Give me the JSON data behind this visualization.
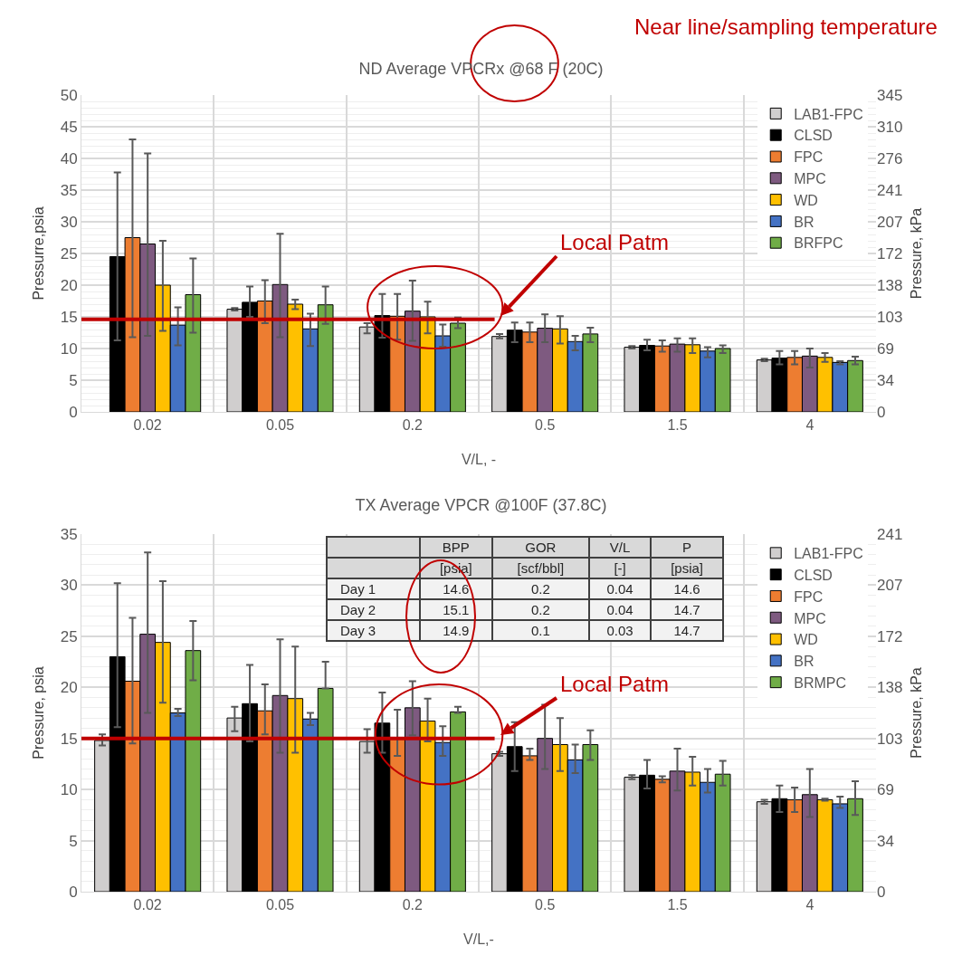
{
  "chart_data": [
    {
      "type": "bar",
      "title": "ND Average VPCRx @68 F (20C)",
      "xlabel": "V/L, -",
      "ylabel": "Pressurre,psia",
      "y2label": "Pressure, kPa",
      "annotations": [
        "Near line/sampling temperature"
      ],
      "categories": [
        "0.02",
        "0.05",
        "0.2",
        "0.5",
        "1.5",
        "4"
      ],
      "series": [
        {
          "name": "LAB1-FPC",
          "color": "#d0cece",
          "values": [
            null,
            16.2,
            13.4,
            11.9,
            10.2,
            8.2
          ],
          "errors": [
            null,
            [
              16,
              16.4
            ],
            [
              12.4,
              14
            ],
            [
              11.6,
              12.3
            ],
            [
              10,
              10.4
            ],
            [
              8,
              8.4
            ]
          ]
        },
        {
          "name": "CLSD",
          "color": "#000000",
          "values": [
            24.5,
            17.3,
            15.2,
            12.9,
            10.5,
            8.5
          ],
          "errors": [
            [
              11.3,
              37.8
            ],
            [
              15,
              19.8
            ],
            [
              11.7,
              18.6
            ],
            [
              11,
              14.1
            ],
            [
              9.7,
              11.4
            ],
            [
              7.5,
              9.6
            ]
          ]
        },
        {
          "name": "FPC",
          "color": "#ed7d31",
          "values": [
            27.5,
            17.5,
            15.1,
            12.6,
            10.4,
            8.6
          ],
          "errors": [
            [
              11.8,
              43
            ],
            [
              14,
              20.8
            ],
            [
              11.4,
              18.6
            ],
            [
              11,
              14.1
            ],
            [
              9.5,
              11.3
            ],
            [
              7.5,
              9.6
            ]
          ]
        },
        {
          "name": "MPC",
          "color": "#7e5a80",
          "values": [
            26.5,
            20.1,
            15.9,
            13.2,
            10.7,
            8.8
          ],
          "errors": [
            [
              12,
              40.8
            ],
            [
              11.8,
              28.1
            ],
            [
              11.2,
              20.7
            ],
            [
              11,
              15.4
            ],
            [
              9.5,
              11.6
            ],
            [
              7,
              10
            ]
          ]
        },
        {
          "name": "WD",
          "color": "#ffc000",
          "values": [
            20,
            17,
            15,
            13.1,
            10.6,
            8.6
          ],
          "errors": [
            [
              12.8,
              27
            ],
            [
              16.2,
              17.7
            ],
            [
              12.4,
              17.4
            ],
            [
              10.8,
              15.1
            ],
            [
              9.3,
              11.6
            ],
            [
              7.9,
              9.3
            ]
          ]
        },
        {
          "name": "BR",
          "color": "#4472c4",
          "values": [
            13.7,
            13.1,
            12,
            11.1,
            9.6,
            7.8
          ],
          "errors": [
            [
              10.5,
              16.5
            ],
            [
              10.4,
              15.5
            ],
            [
              10.3,
              13.8
            ],
            [
              9.7,
              12
            ],
            [
              8.6,
              10.2
            ],
            [
              7.5,
              8
            ]
          ]
        },
        {
          "name": "BRFPC",
          "color": "#70ad47",
          "values": [
            18.5,
            16.9,
            14,
            12.3,
            10,
            8.1
          ],
          "errors": [
            [
              12.5,
              24.2
            ],
            [
              13.9,
              19.8
            ],
            [
              13.2,
              14.9
            ],
            [
              11,
              13.3
            ],
            [
              9.3,
              10.5
            ],
            [
              7.5,
              8.7
            ]
          ]
        }
      ],
      "ylim": [
        0,
        50
      ],
      "yticks": [
        0,
        5,
        10,
        15,
        20,
        25,
        30,
        35,
        40,
        45,
        50
      ],
      "y2lim": [
        0,
        345
      ],
      "y2ticks": [
        0,
        34,
        69,
        103,
        138,
        172,
        207,
        241,
        276,
        310,
        345
      ],
      "ref_lines": [
        {
          "axis": "y",
          "value": 14.6,
          "label": "Local Patm",
          "color": "#c00000"
        }
      ],
      "grid": true,
      "legend": "top right"
    },
    {
      "type": "bar",
      "title": "TX Average VPCR @100F (37.8C)",
      "xlabel": "V/L,-",
      "ylabel": "Pressure, psia",
      "y2label": "Pressure, kPa",
      "annotations": [
        "BPP",
        "GOR",
        "V/L",
        "P",
        "[psia]",
        "[scf/bbl]",
        "[-]",
        "[psia]",
        "Day 1",
        "14.6",
        "0.2",
        "0.04",
        "14.6",
        "Day 2",
        "15.1",
        "0.2",
        "0.04",
        "14.7",
        "Day 3",
        "14.9",
        "0.1",
        "0.03",
        "14.7"
      ],
      "categories": [
        "0.02",
        "0.05",
        "0.2",
        "0.5",
        "1.5",
        "4"
      ],
      "series": [
        {
          "name": "LAB1-FPC",
          "color": "#d0cece",
          "values": [
            14.8,
            17,
            14.7,
            13.5,
            11.2,
            8.8
          ],
          "errors": [
            [
              14.3,
              15.4
            ],
            [
              15.7,
              18.1
            ],
            [
              13.6,
              15.9
            ],
            [
              13.3,
              13.7
            ],
            [
              11,
              11.4
            ],
            [
              8.6,
              9
            ]
          ]
        },
        {
          "name": "CLSD",
          "color": "#000000",
          "values": [
            23,
            18.4,
            16.5,
            14.2,
            11.4,
            9.1
          ],
          "errors": [
            [
              16.1,
              30.2
            ],
            [
              14.7,
              22.2
            ],
            [
              13.6,
              19.5
            ],
            [
              11.8,
              16.6
            ],
            [
              10.1,
              12.9
            ],
            [
              7.8,
              10.4
            ]
          ]
        },
        {
          "name": "FPC",
          "color": "#ed7d31",
          "values": [
            20.6,
            17.7,
            15.1,
            13.3,
            11,
            9
          ],
          "errors": [
            [
              14.5,
              26.8
            ],
            [
              15.4,
              20.3
            ],
            [
              13.3,
              17.8
            ],
            [
              12.9,
              14
            ],
            [
              10.7,
              11.3
            ],
            [
              7.8,
              10.2
            ]
          ]
        },
        {
          "name": "MPC",
          "color": "#7e5a80",
          "values": [
            25.2,
            19.2,
            18,
            15,
            11.8,
            9.5
          ],
          "errors": [
            [
              17.5,
              33.2
            ],
            [
              13.6,
              24.7
            ],
            [
              15.3,
              20.6
            ],
            [
              12,
              18.3
            ],
            [
              9.9,
              14
            ],
            [
              7.3,
              12
            ]
          ]
        },
        {
          "name": "WD",
          "color": "#ffc000",
          "values": [
            24.4,
            18.9,
            16.7,
            14.4,
            11.7,
            9
          ],
          "errors": [
            [
              18.5,
              30.4
            ],
            [
              13.6,
              24
            ],
            [
              14.7,
              18.9
            ],
            [
              11.8,
              17
            ],
            [
              10.4,
              13.2
            ],
            [
              8.9,
              9.1
            ]
          ]
        },
        {
          "name": "BR",
          "color": "#4472c4",
          "values": [
            17.5,
            16.9,
            14.6,
            12.9,
            10.7,
            8.6
          ],
          "errors": [
            [
              17.2,
              17.9
            ],
            [
              16.3,
              17.5
            ],
            [
              13.3,
              16.2
            ],
            [
              11.6,
              14.4
            ],
            [
              9.7,
              12
            ],
            [
              8.2,
              9.3
            ]
          ]
        },
        {
          "name": "BRMPC",
          "color": "#70ad47",
          "values": [
            23.6,
            19.9,
            17.6,
            14.4,
            11.5,
            9.1
          ],
          "errors": [
            [
              20.7,
              26.5
            ],
            [
              19.9,
              22.5
            ],
            [
              17.5,
              18.1
            ],
            [
              12.9,
              15.8
            ],
            [
              10.4,
              12.8
            ],
            [
              7.5,
              10.8
            ]
          ]
        }
      ],
      "ylim": [
        0,
        35
      ],
      "yticks": [
        0,
        5,
        10,
        15,
        20,
        25,
        30,
        35
      ],
      "y2lim": [
        0,
        241
      ],
      "y2ticks": [
        0,
        34,
        69,
        103,
        138,
        172,
        207,
        241
      ],
      "ref_lines": [
        {
          "axis": "y",
          "value": 15,
          "label": "Local Patm",
          "color": "#c00000"
        }
      ],
      "grid": true,
      "legend": "top right"
    }
  ]
}
